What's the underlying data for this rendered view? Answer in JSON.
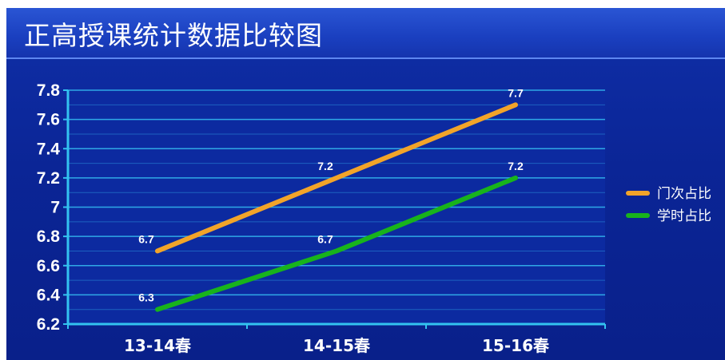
{
  "title": "正高授课统计数据比较图",
  "chart_data": {
    "type": "line",
    "categories": [
      "13-14春",
      "14-15春",
      "15-16春"
    ],
    "series": [
      {
        "name": "门次占比",
        "values": [
          6.7,
          7.2,
          7.7
        ],
        "labels": [
          "6.7",
          "7.2",
          "7.7"
        ],
        "color": "#f2a429"
      },
      {
        "name": "学时占比",
        "values": [
          6.3,
          6.7,
          7.2
        ],
        "labels": [
          "6.3",
          "6.7",
          "7.2"
        ],
        "color": "#18b31c"
      }
    ],
    "ylim": [
      6.2,
      7.8
    ],
    "yticks": [
      "6.2",
      "6.4",
      "6.6",
      "6.8",
      "7",
      "7.2",
      "7.4",
      "7.6",
      "7.8"
    ],
    "grid": true,
    "legend_position": "right",
    "colors": {
      "background": "#0b2596",
      "axis": "#33c3f0",
      "grid": "#2fa8e6"
    }
  }
}
